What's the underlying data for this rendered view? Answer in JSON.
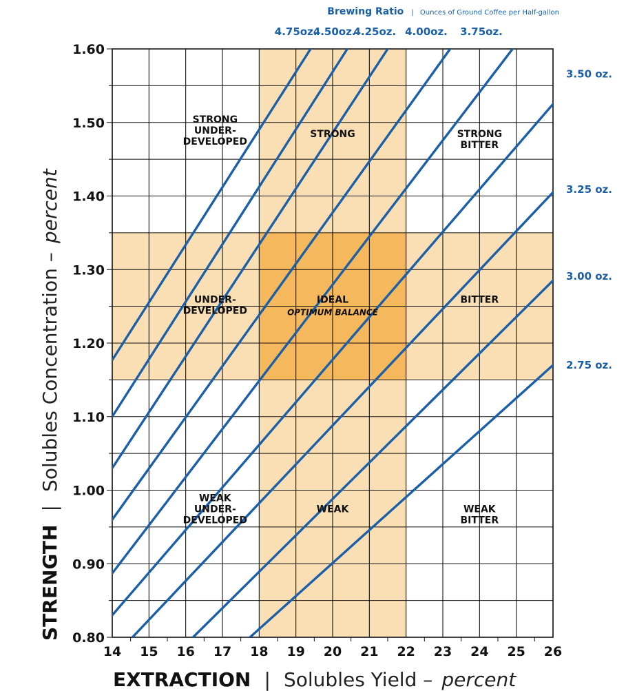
{
  "chart_data": {
    "type": "line",
    "header": {
      "title": "Brewing Ratio",
      "separator": "|",
      "subtitle": "Ounces of Ground Coffee per Half-gallon"
    },
    "x_axis": {
      "label_bold": "EXTRACTION",
      "separator": "|",
      "label_regular": "Solubles Yield –",
      "label_italic": "percent",
      "range": [
        14,
        26
      ],
      "ticks": [
        "14",
        "15",
        "16",
        "17",
        "18",
        "19",
        "20",
        "21",
        "22",
        "23",
        "24",
        "25",
        "26"
      ]
    },
    "y_axis": {
      "label_bold": "STRENGTH",
      "separator": "|",
      "label_regular": "Solubles Concentration –",
      "label_italic": "percent",
      "range": [
        0.8,
        1.6
      ],
      "ticks": [
        "0.80",
        "0.90",
        "1.00",
        "1.10",
        "1.20",
        "1.30",
        "1.40",
        "1.50",
        "1.60"
      ]
    },
    "grid": true,
    "bands": [
      {
        "axis": "x",
        "from": 18,
        "to": 22,
        "color": "#fbdfb4"
      },
      {
        "axis": "y",
        "from": 1.15,
        "to": 1.35,
        "color": "#fbdfb4"
      }
    ],
    "highlight": {
      "x": [
        18,
        22
      ],
      "y": [
        1.15,
        1.35
      ],
      "color": "#f6b85c"
    },
    "series": [
      {
        "name": "4.75oz.",
        "slope": 0.08,
        "points": [
          [
            14,
            1.177
          ],
          [
            19.4,
            1.6
          ]
        ]
      },
      {
        "name": "4.50oz.",
        "slope": 0.079,
        "points": [
          [
            14,
            1.1
          ],
          [
            20.4,
            1.6
          ]
        ]
      },
      {
        "name": "4.25oz.",
        "slope": 0.075,
        "points": [
          [
            14,
            1.03
          ],
          [
            21.5,
            1.6
          ]
        ]
      },
      {
        "name": "4.00oz.",
        "slope": 0.071,
        "points": [
          [
            14,
            0.96
          ],
          [
            23.2,
            1.6
          ]
        ]
      },
      {
        "name": "3.75oz.",
        "slope": 0.067,
        "points": [
          [
            14,
            0.887
          ],
          [
            24.9,
            1.6
          ]
        ]
      },
      {
        "name": "3.50 oz.",
        "slope": 0.063,
        "points": [
          [
            14,
            0.83
          ],
          [
            26,
            1.525
          ]
        ]
      },
      {
        "name": "3.25 oz.",
        "slope": 0.059,
        "points": [
          [
            14.55,
            0.8
          ],
          [
            26,
            1.405
          ]
        ]
      },
      {
        "name": "3.00 oz.",
        "slope": 0.055,
        "points": [
          [
            16.2,
            0.8
          ],
          [
            26,
            1.285
          ]
        ]
      },
      {
        "name": "2.75 oz.",
        "slope": 0.05,
        "points": [
          [
            17.75,
            0.8
          ],
          [
            26,
            1.17
          ]
        ]
      }
    ],
    "series_labels_top": [
      {
        "text": "4.75oz.",
        "x": 19.0
      },
      {
        "text": "4.50oz.",
        "x": 20.05
      },
      {
        "text": "4.25oz.",
        "x": 21.15
      },
      {
        "text": "4.00oz.",
        "x": 22.55
      },
      {
        "text": "3.75oz.",
        "x": 24.05
      }
    ],
    "series_labels_right": [
      {
        "text": "3.50 oz.",
        "y": 1.566
      },
      {
        "text": "3.25 oz.",
        "y": 1.409
      },
      {
        "text": "3.00 oz.",
        "y": 1.291
      },
      {
        "text": "2.75 oz.",
        "y": 1.17
      }
    ],
    "zones": [
      {
        "lines": [
          "STRONG",
          "UNDER-",
          "DEVELOPED"
        ],
        "x": 16.8,
        "y": 1.5
      },
      {
        "lines": [
          "STRONG"
        ],
        "x": 20.0,
        "y": 1.48
      },
      {
        "lines": [
          "STRONG",
          "BITTER"
        ],
        "x": 24.0,
        "y": 1.48
      },
      {
        "lines": [
          "UNDER-",
          "DEVELOPED"
        ],
        "x": 16.8,
        "y": 1.255
      },
      {
        "lines": [
          "IDEAL"
        ],
        "sublines": [
          "OPTIMUM BALANCE"
        ],
        "x": 20.0,
        "y": 1.255
      },
      {
        "lines": [
          "BITTER"
        ],
        "x": 24.0,
        "y": 1.255
      },
      {
        "lines": [
          "WEAK",
          "UNDER-",
          "DEVELOPED"
        ],
        "x": 16.8,
        "y": 0.985
      },
      {
        "lines": [
          "WEAK"
        ],
        "x": 20.0,
        "y": 0.97
      },
      {
        "lines": [
          "WEAK",
          "BITTER"
        ],
        "x": 24.0,
        "y": 0.97
      }
    ],
    "colors": {
      "series": "#1a5fa8",
      "labels": "#1a5fa8",
      "grid": "#111111",
      "text": "#111111"
    }
  }
}
